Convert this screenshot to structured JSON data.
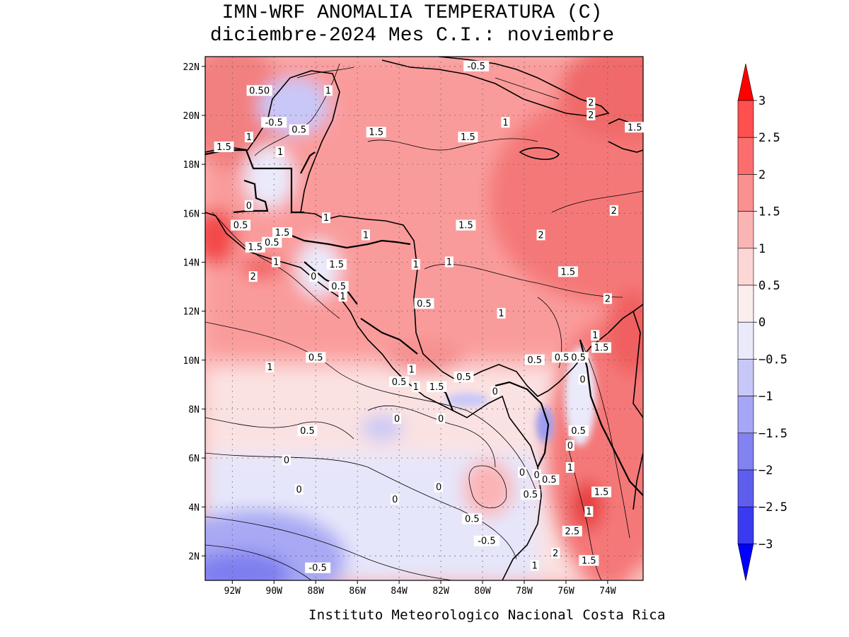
{
  "header": {
    "title_line1": "IMN-WRF  ANOMALIA TEMPERATURA (C)",
    "title_line2": "diciembre-2024 Mes C.I.: noviembre"
  },
  "credit": "Instituto Meteorologico Nacional Costa Rica",
  "map": {
    "lon_range": [
      -93.3,
      -72.3
    ],
    "lat_range": [
      1.0,
      22.4
    ],
    "lat_ticks": [
      {
        "value": 22,
        "label": "22N"
      },
      {
        "value": 20,
        "label": "20N"
      },
      {
        "value": 18,
        "label": "18N"
      },
      {
        "value": 16,
        "label": "16N"
      },
      {
        "value": 14,
        "label": "14N"
      },
      {
        "value": 12,
        "label": "12N"
      },
      {
        "value": 10,
        "label": "10N"
      },
      {
        "value": 8,
        "label": "8N"
      },
      {
        "value": 6,
        "label": "6N"
      },
      {
        "value": 4,
        "label": "4N"
      },
      {
        "value": 2,
        "label": "2N"
      }
    ],
    "lon_ticks": [
      {
        "value": -92,
        "label": "92W"
      },
      {
        "value": -90,
        "label": "90W"
      },
      {
        "value": -88,
        "label": "88W"
      },
      {
        "value": -86,
        "label": "86W"
      },
      {
        "value": -84,
        "label": "84W"
      },
      {
        "value": -82,
        "label": "82W"
      },
      {
        "value": -80,
        "label": "80W"
      },
      {
        "value": -78,
        "label": "78W"
      },
      {
        "value": -76,
        "label": "76W"
      },
      {
        "value": -74,
        "label": "74W"
      }
    ],
    "contour_labels": [
      {
        "lon": -90.7,
        "lat": 21.0,
        "text": "0.50"
      },
      {
        "lon": -87.4,
        "lat": 21.0,
        "text": "1"
      },
      {
        "lon": -90.0,
        "lat": 19.7,
        "text": "-0.5"
      },
      {
        "lon": -88.8,
        "lat": 19.4,
        "text": "0.5"
      },
      {
        "lon": -91.2,
        "lat": 19.1,
        "text": "1"
      },
      {
        "lon": -92.4,
        "lat": 18.7,
        "text": "1.5"
      },
      {
        "lon": -89.7,
        "lat": 18.5,
        "text": "1"
      },
      {
        "lon": -85.1,
        "lat": 19.3,
        "text": "1.5"
      },
      {
        "lon": -80.7,
        "lat": 19.1,
        "text": "1.5"
      },
      {
        "lon": -78.9,
        "lat": 19.7,
        "text": "1"
      },
      {
        "lon": -74.8,
        "lat": 20.5,
        "text": "2"
      },
      {
        "lon": -74.8,
        "lat": 20.0,
        "text": "2"
      },
      {
        "lon": -72.7,
        "lat": 19.5,
        "text": "1.5"
      },
      {
        "lon": -80.3,
        "lat": 22.0,
        "text": "-0.5"
      },
      {
        "lon": -91.2,
        "lat": 16.3,
        "text": "0"
      },
      {
        "lon": -91.6,
        "lat": 15.5,
        "text": "0.5"
      },
      {
        "lon": -89.6,
        "lat": 15.2,
        "text": "1.5"
      },
      {
        "lon": -90.9,
        "lat": 14.6,
        "text": "1.5"
      },
      {
        "lon": -90.1,
        "lat": 14.8,
        "text": "0.5"
      },
      {
        "lon": -89.9,
        "lat": 14.0,
        "text": "1"
      },
      {
        "lon": -91.0,
        "lat": 13.4,
        "text": "2"
      },
      {
        "lon": -87.5,
        "lat": 15.8,
        "text": "1"
      },
      {
        "lon": -85.6,
        "lat": 15.1,
        "text": "1"
      },
      {
        "lon": -87.0,
        "lat": 13.9,
        "text": "1.5"
      },
      {
        "lon": -88.1,
        "lat": 13.4,
        "text": "0"
      },
      {
        "lon": -86.9,
        "lat": 13.0,
        "text": "0.5"
      },
      {
        "lon": -86.7,
        "lat": 12.6,
        "text": "1"
      },
      {
        "lon": -83.2,
        "lat": 13.9,
        "text": "1"
      },
      {
        "lon": -81.6,
        "lat": 14.0,
        "text": "1"
      },
      {
        "lon": -82.8,
        "lat": 12.3,
        "text": "0.5"
      },
      {
        "lon": -80.8,
        "lat": 15.5,
        "text": "1.5"
      },
      {
        "lon": -77.2,
        "lat": 15.1,
        "text": "2"
      },
      {
        "lon": -73.7,
        "lat": 16.1,
        "text": "2"
      },
      {
        "lon": -75.9,
        "lat": 13.6,
        "text": "1.5"
      },
      {
        "lon": -79.1,
        "lat": 11.9,
        "text": "1"
      },
      {
        "lon": -74.0,
        "lat": 12.5,
        "text": "2"
      },
      {
        "lon": -74.6,
        "lat": 11.0,
        "text": "1"
      },
      {
        "lon": -74.3,
        "lat": 10.5,
        "text": "1.5"
      },
      {
        "lon": -77.5,
        "lat": 10.0,
        "text": "0.5"
      },
      {
        "lon": -76.2,
        "lat": 10.1,
        "text": "0.5"
      },
      {
        "lon": -75.4,
        "lat": 10.1,
        "text": "0.5"
      },
      {
        "lon": -75.2,
        "lat": 9.2,
        "text": "0"
      },
      {
        "lon": -88.0,
        "lat": 10.1,
        "text": "0.5"
      },
      {
        "lon": -90.2,
        "lat": 9.7,
        "text": "1"
      },
      {
        "lon": -83.4,
        "lat": 9.6,
        "text": "1"
      },
      {
        "lon": -84.0,
        "lat": 9.1,
        "text": "0.5"
      },
      {
        "lon": -83.2,
        "lat": 8.9,
        "text": "1"
      },
      {
        "lon": -80.9,
        "lat": 9.3,
        "text": "0.5"
      },
      {
        "lon": -82.2,
        "lat": 8.9,
        "text": "1.5"
      },
      {
        "lon": -79.4,
        "lat": 8.7,
        "text": "0"
      },
      {
        "lon": -88.4,
        "lat": 7.1,
        "text": "0.5"
      },
      {
        "lon": -84.1,
        "lat": 7.6,
        "text": "0"
      },
      {
        "lon": -82.0,
        "lat": 7.6,
        "text": "0"
      },
      {
        "lon": -75.4,
        "lat": 7.1,
        "text": "0.5"
      },
      {
        "lon": -75.8,
        "lat": 6.5,
        "text": "0"
      },
      {
        "lon": -89.4,
        "lat": 5.9,
        "text": "0"
      },
      {
        "lon": -88.8,
        "lat": 4.7,
        "text": "0"
      },
      {
        "lon": -84.2,
        "lat": 4.3,
        "text": "0"
      },
      {
        "lon": -82.1,
        "lat": 4.8,
        "text": "0"
      },
      {
        "lon": -80.5,
        "lat": 3.5,
        "text": "0.5"
      },
      {
        "lon": -79.8,
        "lat": 2.6,
        "text": "-0.5"
      },
      {
        "lon": -78.1,
        "lat": 5.4,
        "text": "0"
      },
      {
        "lon": -77.4,
        "lat": 5.3,
        "text": "0"
      },
      {
        "lon": -76.8,
        "lat": 5.1,
        "text": "0.5"
      },
      {
        "lon": -75.8,
        "lat": 5.6,
        "text": "1"
      },
      {
        "lon": -77.7,
        "lat": 4.5,
        "text": "0.5"
      },
      {
        "lon": -74.3,
        "lat": 4.6,
        "text": "1.5"
      },
      {
        "lon": -74.9,
        "lat": 3.8,
        "text": "1"
      },
      {
        "lon": -75.7,
        "lat": 3.0,
        "text": "2.5"
      },
      {
        "lon": -76.5,
        "lat": 2.1,
        "text": "2"
      },
      {
        "lon": -74.9,
        "lat": 1.8,
        "text": "1.5"
      },
      {
        "lon": -77.5,
        "lat": 1.6,
        "text": "1"
      },
      {
        "lon": -87.9,
        "lat": 1.5,
        "text": "-0.5"
      }
    ]
  },
  "colorbar": {
    "labels": [
      "3",
      "2.5",
      "2",
      "1.5",
      "1",
      "0.5",
      "0",
      "−0.5",
      "−1",
      "−1.5",
      "−2",
      "−2.5",
      "−3"
    ],
    "colors_top_to_bottom": [
      "#ff3030",
      "#ff5050",
      "#fc6e6e",
      "#fa9090",
      "#fbb4b4",
      "#fdd6d6",
      "#fdeeee",
      "#eaeafb",
      "#c8c8f8",
      "#a6a6f4",
      "#8282f0",
      "#5e5eee",
      "#3a3af0",
      "#1e1efa"
    ],
    "arrow_top_color": "#ff0000",
    "arrow_bottom_color": "#0000ff"
  }
}
